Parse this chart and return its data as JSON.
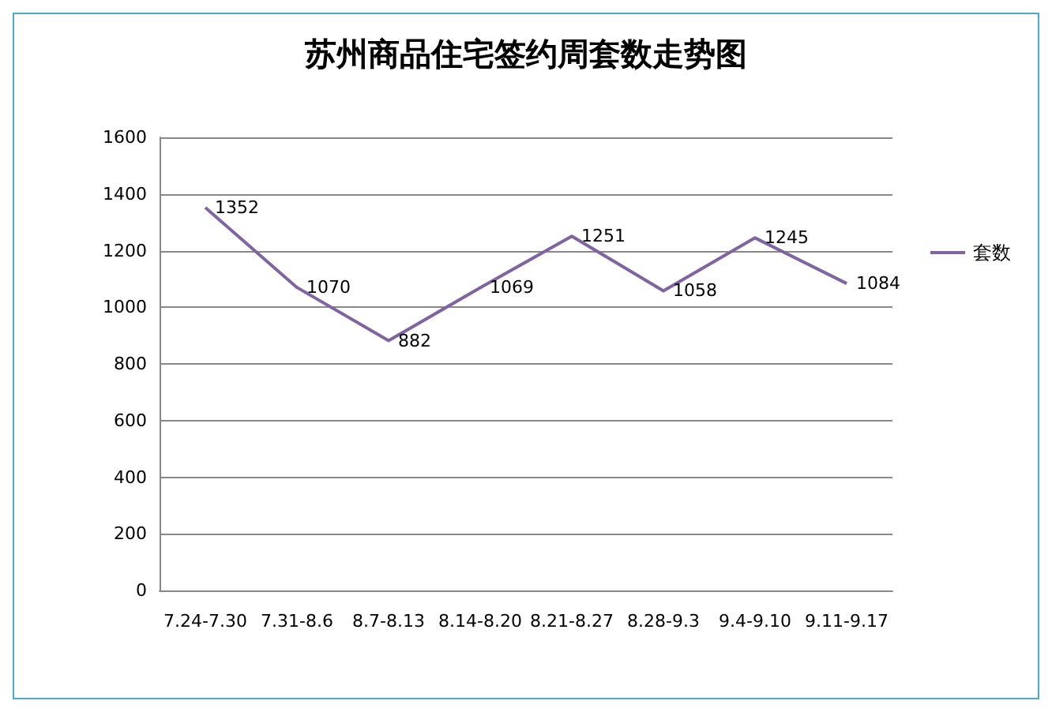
{
  "chart_data": {
    "type": "line",
    "title": "苏州商品住宅签约周套数走势图",
    "categories": [
      "7.24-7.30",
      "7.31-8.6",
      "8.7-8.13",
      "8.14-8.20",
      "8.21-8.27",
      "8.28-9.3",
      "9.4-9.10",
      "9.11-9.17"
    ],
    "series": [
      {
        "name": "套数",
        "color": "#8064a2",
        "values": [
          1352,
          1070,
          882,
          1069,
          1251,
          1058,
          1245,
          1084
        ]
      }
    ],
    "ylim": [
      0,
      1600
    ],
    "yticks": [
      0,
      200,
      400,
      600,
      800,
      1000,
      1200,
      1400,
      1600
    ],
    "grid": "y",
    "legend": "right",
    "data_labels": true
  }
}
